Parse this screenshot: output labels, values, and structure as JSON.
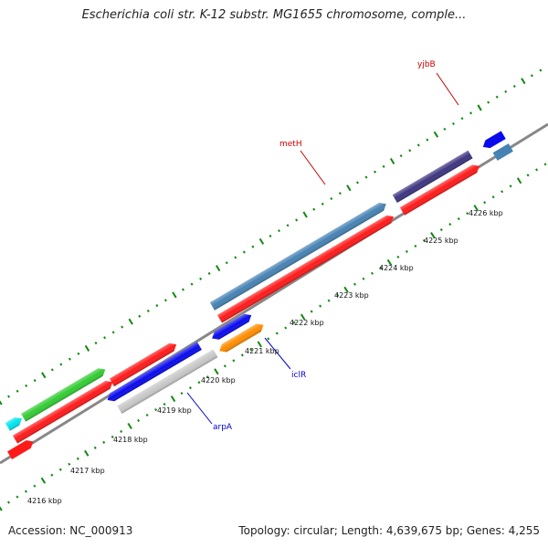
{
  "header": {
    "title": "Escherichia coli str. K-12 substr. MG1655 chromosome, comple..."
  },
  "footer": {
    "accession": "Accession: NC_000913",
    "summary": "Topology: circular; Length: 4,639,675 bp; Genes: 4,255"
  },
  "scale": {
    "ticks": [
      "4216 kbp",
      "4217 kbp",
      "4218 kbp",
      "4219 kbp",
      "4220 kbp",
      "4221 kbp",
      "4222 kbp",
      "4223 kbp",
      "4224 kbp",
      "4225 kbp",
      "4226 kbp"
    ]
  },
  "genes": {
    "metH": {
      "label": "metH",
      "color": "#cc0000"
    },
    "yjbB": {
      "label": "yjbB",
      "color": "#cc0000"
    },
    "iclR": {
      "label": "iclR",
      "color": "#0000cc"
    },
    "arpA": {
      "label": "arpA",
      "color": "#0000cc"
    }
  },
  "colors": {
    "cds_red": "#ff1a1a",
    "steelblue": "#4682b4",
    "darkslate": "#3d3580",
    "blue": "#0a0aee",
    "orange": "#ff8c00",
    "silver": "#c8c8c8",
    "green": "#33cc33",
    "cyan": "#00e5ee",
    "tick_green": "#118811",
    "backbone": "#888888"
  }
}
